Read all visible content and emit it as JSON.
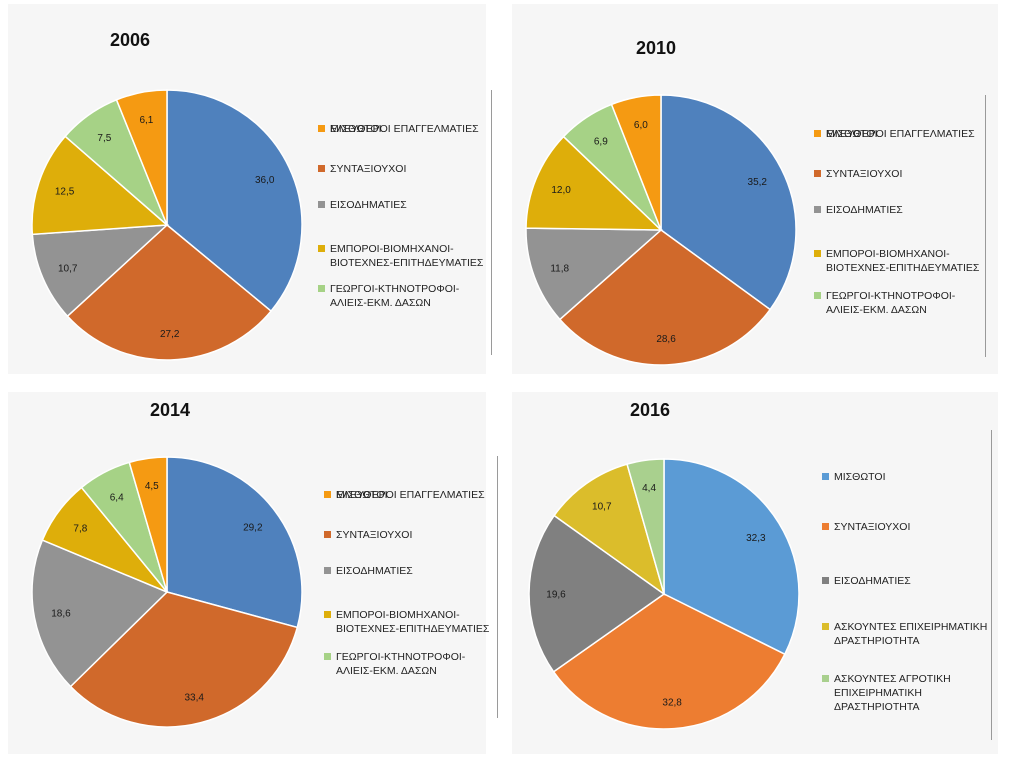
{
  "chart_data": [
    {
      "type": "pie",
      "title": "2006",
      "labels": [
        "ΜΙΣΘΩΤΟΙ",
        "ΣΥΝΤΑΞΙΟΥΧΟΙ",
        "ΕΙΣΟΔΗΜΑΤΙΕΣ",
        "ΕΜΠΟΡΟΙ-ΒΙΟΜΗΧΑΝΟΙ-\nΒΙΟΤΕΧΝΕΣ-ΕΠΙΤΗΔΕΥΜΑΤΙΕΣ",
        "ΓΕΩΡΓΟΙ-ΚΤΗΝΟΤΡΟΦΟΙ-\nΑΛΙΕΙΣ-ΕΚΜ. ΔΑΣΩΝ",
        "ΕΛΕΥΘΕΡΟΙ ΕΠΑΓΓΕΛΜΑΤΙΕΣ"
      ],
      "values": [
        36.0,
        27.2,
        10.7,
        12.5,
        7.5,
        6.1
      ],
      "value_labels": [
        "36,0",
        "27,2",
        "10,7",
        "12,5",
        "7,5",
        "6,1"
      ],
      "colors": [
        "#4f81bd",
        "#d0692b",
        "#939393",
        "#deae0a",
        "#a6d286",
        "#f59a12"
      ],
      "legend": "right"
    },
    {
      "type": "pie",
      "title": "2010",
      "labels": [
        "ΜΙΣΘΩΤΟΙ",
        "ΣΥΝΤΑΞΙΟΥΧΟΙ",
        "ΕΙΣΟΔΗΜΑΤΙΕΣ",
        "ΕΜΠΟΡΟΙ-ΒΙΟΜΗΧΑΝΟΙ-\nΒΙΟΤΕΧΝΕΣ-ΕΠΙΤΗΔΕΥΜΑΤΙΕΣ",
        "ΓΕΩΡΓΟΙ-ΚΤΗΝΟΤΡΟΦΟΙ-\nΑΛΙΕΙΣ-ΕΚΜ. ΔΑΣΩΝ",
        "ΕΛΕΥΘΕΡΟΙ ΕΠΑΓΓΕΛΜΑΤΙΕΣ"
      ],
      "values": [
        35.2,
        28.6,
        11.8,
        12.0,
        6.9,
        6.0
      ],
      "value_labels": [
        "35,2",
        "28,6",
        "11,8",
        "12,0",
        "6,9",
        "6,0"
      ],
      "colors": [
        "#4f81bd",
        "#d0692b",
        "#939393",
        "#deae0a",
        "#a6d286",
        "#f59a12"
      ],
      "legend": "right"
    },
    {
      "type": "pie",
      "title": "2014",
      "labels": [
        "ΜΙΣΘΩΤΟΙ",
        "ΣΥΝΤΑΞΙΟΥΧΟΙ",
        "ΕΙΣΟΔΗΜΑΤΙΕΣ",
        "ΕΜΠΟΡΟΙ-ΒΙΟΜΗΧΑΝΟΙ-\nΒΙΟΤΕΧΝΕΣ-ΕΠΙΤΗΔΕΥΜΑΤΙΕΣ",
        "ΓΕΩΡΓΟΙ-ΚΤΗΝΟΤΡΟΦΟΙ-\nΑΛΙΕΙΣ-ΕΚΜ. ΔΑΣΩΝ",
        "ΕΛΕΥΘΕΡΟΙ ΕΠΑΓΓΕΛΜΑΤΙΕΣ"
      ],
      "values": [
        29.2,
        33.4,
        18.6,
        7.8,
        6.4,
        4.5
      ],
      "value_labels": [
        "29,2",
        "33,4",
        "18,6",
        "7,8",
        "6,4",
        "4,5"
      ],
      "colors": [
        "#4f81bd",
        "#d0692b",
        "#939393",
        "#deae0a",
        "#a6d286",
        "#f59a12"
      ],
      "legend": "right"
    },
    {
      "type": "pie",
      "title": "2016",
      "labels": [
        "ΜΙΣΘΩΤΟΙ",
        "ΣΥΝΤΑΞΙΟΥΧΟΙ",
        "ΕΙΣΟΔΗΜΑΤΙΕΣ",
        "ΑΣΚΟΥΝΤΕΣ ΕΠΙΧΕΙΡΗΜΑΤΙΚΗ\nΔΡΑΣΤΗΡΙΟΤΗΤΑ",
        "ΑΣΚΟΥΝΤΕΣ ΑΓΡΟΤΙΚΗ\nΕΠΙΧΕΙΡΗΜΑΤΙΚΗ\nΔΡΑΣΤΗΡΙΟΤΗΤΑ"
      ],
      "values": [
        32.3,
        32.8,
        19.6,
        10.7,
        4.4
      ],
      "value_labels": [
        "32,3",
        "32,8",
        "19,6",
        "10,7",
        "4,4"
      ],
      "colors": [
        "#5b9bd5",
        "#ed7d31",
        "#808080",
        "#dbbd2b",
        "#a9d08e"
      ],
      "legend": "right"
    }
  ]
}
